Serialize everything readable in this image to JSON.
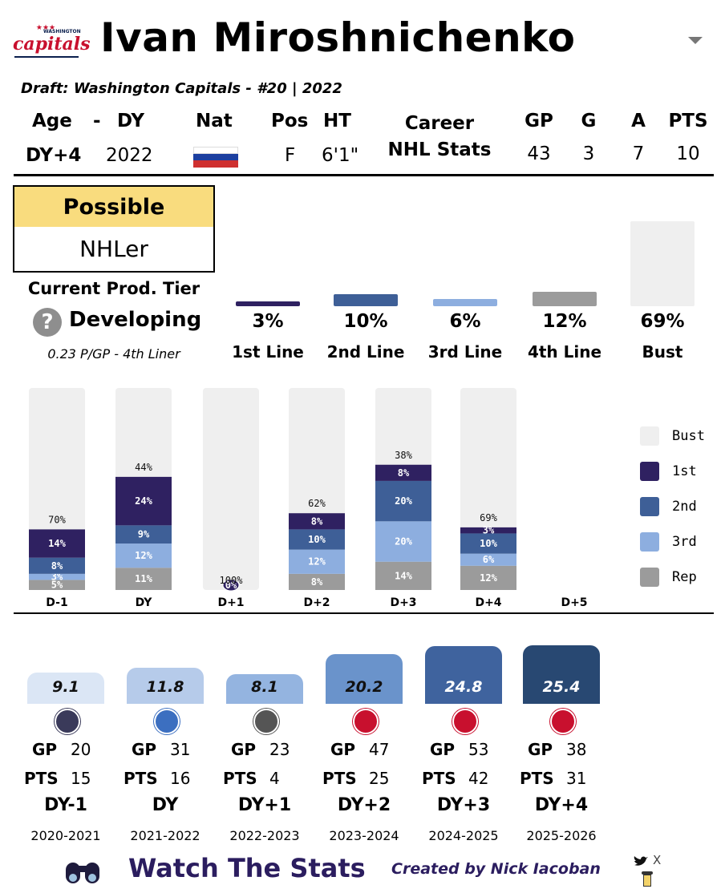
{
  "team_logo": {
    "text": "capitals",
    "subtext": "WASHINGTON"
  },
  "player": {
    "name": "Ivan Miroshnichenko",
    "draft_line": "Draft: Washington Capitals - #20 | 2022"
  },
  "dropdown_icon": "chevron-down-icon",
  "header": {
    "age_label": "Age",
    "dash": "-",
    "dy_label": "DY",
    "nat_label": "Nat",
    "pos_label": "Pos",
    "ht_label": "HT",
    "career_label_1": "Career",
    "career_label_2": "NHL Stats",
    "gp_label": "GP",
    "g_label": "G",
    "a_label": "A",
    "pts_label": "PTS"
  },
  "values": {
    "age": "DY+4",
    "dy": "2022",
    "nat_flag": "Russia",
    "pos": "F",
    "ht": "6'1\"",
    "gp": "43",
    "g": "3",
    "a": "7",
    "pts": "10"
  },
  "tier": {
    "top": "Possible",
    "bottom": "NHLer",
    "current_label": "Current Prod. Tier",
    "help_icon": "question-icon",
    "current_value": "Developing",
    "rate_line": "0.23 P/GP - 4th Liner"
  },
  "colors": {
    "bust": "#efefef",
    "first": "#2f2161",
    "second": "#3e5f97",
    "third": "#8daedf",
    "rep": "#9b9b9b",
    "tier_top": "#f9dc7e"
  },
  "chart_data": [
    {
      "type": "bar",
      "title": "Outcome Probabilities",
      "categories": [
        "1st Line",
        "2nd Line",
        "3rd Line",
        "4th Line",
        "Bust"
      ],
      "values": [
        3,
        10,
        6,
        12,
        69
      ],
      "labels": [
        "3%",
        "10%",
        "6%",
        "12%",
        "69%"
      ],
      "ylim": [
        0,
        100
      ]
    },
    {
      "type": "bar",
      "stacked": true,
      "title": "Projection History",
      "categories": [
        "D-1",
        "DY",
        "D+1",
        "D+2",
        "D+3",
        "D+4",
        "D+5"
      ],
      "series": [
        {
          "name": "Rep",
          "values": [
            5,
            11,
            0,
            8,
            14,
            12,
            null
          ],
          "labels": [
            "5%",
            "11%",
            "",
            "8%",
            "14%",
            "12%",
            ""
          ]
        },
        {
          "name": "3rd",
          "values": [
            3,
            12,
            0,
            12,
            20,
            6,
            null
          ],
          "labels": [
            "3%",
            "12%",
            "",
            "12%",
            "20%",
            "6%",
            ""
          ]
        },
        {
          "name": "2nd",
          "values": [
            8,
            9,
            0,
            10,
            20,
            10,
            null
          ],
          "labels": [
            "8%",
            "9%",
            "",
            "10%",
            "20%",
            "10%",
            ""
          ]
        },
        {
          "name": "1st",
          "values": [
            14,
            24,
            0,
            8,
            8,
            3,
            null
          ],
          "labels": [
            "14%",
            "24%",
            "0%",
            "8%",
            "8%",
            "3%",
            ""
          ]
        },
        {
          "name": "Bust",
          "values": [
            70,
            44,
            100,
            62,
            38,
            69,
            null
          ],
          "labels": [
            "70%",
            "44%",
            "100%",
            "62%",
            "38%",
            "69%",
            ""
          ]
        }
      ],
      "legend": [
        "Bust",
        "1st",
        "2nd",
        "3rd",
        "Rep"
      ],
      "legend_position": "right",
      "ylim": [
        0,
        100
      ]
    },
    {
      "type": "bar",
      "title": "Season Ratings",
      "categories": [
        "DY-1",
        "DY",
        "DY+1",
        "DY+2",
        "DY+3",
        "DY+4"
      ],
      "values": [
        9.1,
        11.8,
        8.1,
        20.2,
        24.8,
        25.4
      ],
      "labels": [
        "9.1",
        "11.8",
        "8.1",
        "20.2",
        "24.8",
        "25.4"
      ],
      "ylim": [
        0,
        26
      ]
    }
  ],
  "seasons": [
    {
      "league": "MHL",
      "gp": "20",
      "pts": "15",
      "dy": "DY-1",
      "season": "2020-2021"
    },
    {
      "league": "VHL",
      "gp": "31",
      "pts": "16",
      "dy": "DY",
      "season": "2021-2022"
    },
    {
      "league": "KHL",
      "gp": "23",
      "pts": "4",
      "dy": "DY+1",
      "season": "2022-2023"
    },
    {
      "league": "AHL",
      "gp": "47",
      "pts": "25",
      "dy": "DY+2",
      "season": "2023-2024"
    },
    {
      "league": "AHL",
      "gp": "53",
      "pts": "42",
      "dy": "DY+3",
      "season": "2024-2025"
    },
    {
      "league": "AHL",
      "gp": "38",
      "pts": "31",
      "dy": "DY+4",
      "season": "2025-2026"
    }
  ],
  "season_labels": {
    "gp": "GP",
    "pts": "PTS"
  },
  "season_colors": [
    "#dbe6f5",
    "#b6cbea",
    "#94b4e0",
    "#6a93cb",
    "#3f639e",
    "#284872"
  ],
  "season_text_colors": [
    "#111111",
    "#111111",
    "#111111",
    "#111111",
    "#ffffff",
    "#ffffff"
  ],
  "footer": {
    "brand": "Watch The Stats",
    "credit": "Created by Nick Iacoban",
    "twitter_glyph": "X",
    "icons": [
      "binoculars-icon",
      "twitter-icon",
      "x-logo-icon",
      "coffee-cup-icon"
    ]
  }
}
